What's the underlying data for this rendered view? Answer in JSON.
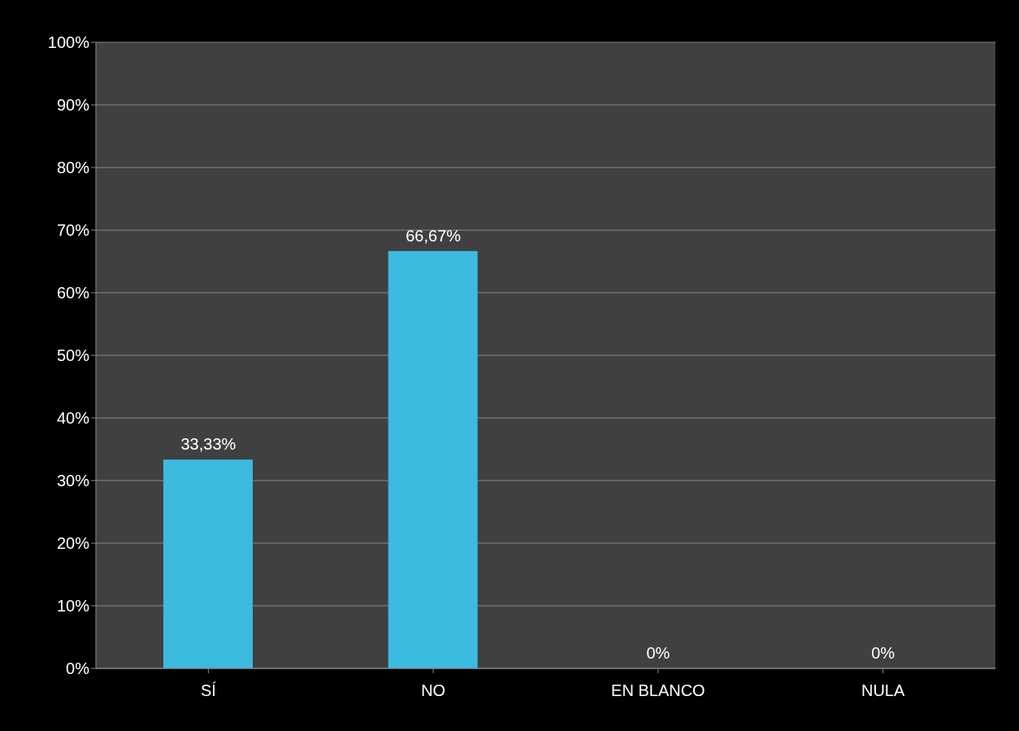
{
  "chart_data": {
    "type": "bar",
    "categories": [
      "SÍ",
      "NO",
      "EN BLANCO",
      "NULA"
    ],
    "values": [
      33.33,
      66.67,
      0,
      0
    ],
    "value_labels": [
      "33,33%",
      "66,67%",
      "0%",
      "0%"
    ],
    "color": "#3bbbe0",
    "ylim": [
      0,
      100
    ],
    "yticks": [
      {
        "value": 0,
        "label": "0%"
      },
      {
        "value": 10,
        "label": "10%"
      },
      {
        "value": 20,
        "label": "20%"
      },
      {
        "value": 30,
        "label": "30%"
      },
      {
        "value": 40,
        "label": "40%"
      },
      {
        "value": 50,
        "label": "50%"
      },
      {
        "value": 60,
        "label": "60%"
      },
      {
        "value": 70,
        "label": "70%"
      },
      {
        "value": 80,
        "label": "80%"
      },
      {
        "value": 90,
        "label": "90%"
      },
      {
        "value": 100,
        "label": "100%"
      }
    ],
    "grid": "y"
  }
}
